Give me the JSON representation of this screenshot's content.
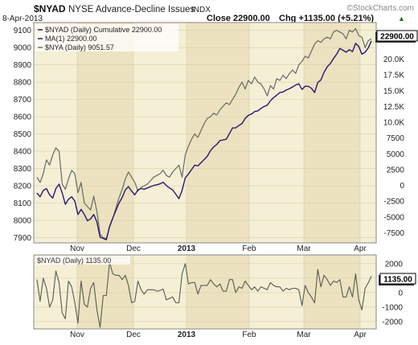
{
  "header": {
    "symbol": "$NYAD",
    "name": "NYSE Advance-Decline Issues",
    "exchange": "INDX",
    "date": "8-Apr-2013",
    "close_label": "Close 22900.00",
    "chg_label": "Chg +1135.00 (+5.21%)",
    "chg_arrow": "▲",
    "brand": "©StockCharts.com"
  },
  "legend": [
    {
      "text": "$NYAD (Daily) Cumulative 22900.00",
      "color": "#222222"
    },
    {
      "text": "MA(1) 22900.00",
      "color": "#2a1a78"
    },
    {
      "text": "$NYA (Daily) 9051.57",
      "color": "#6a6e66"
    }
  ],
  "lower_legend": {
    "text": "$NYAD (Daily) 1135.00",
    "color": "#555a52"
  },
  "badges": {
    "main": "22900.00",
    "lower": "1135.00"
  },
  "colors": {
    "panel_bg": "#f5efd6",
    "band_bg": "#ece2c0",
    "nya_line": "#646b62",
    "cumulative_line": "#28186f",
    "daily_line": "#555c52"
  },
  "chart_data": [
    {
      "type": "line",
      "title": "$NYAD NYSE Advance-Decline Issues",
      "x_labels": [
        "Nov",
        "Dec",
        "2013",
        "Feb",
        "Mar",
        "Apr"
      ],
      "left_axis": {
        "ticks": [
          7900,
          8000,
          8100,
          8200,
          8300,
          8400,
          8500,
          8600,
          8700,
          8800,
          8900,
          9000,
          9100
        ],
        "range": [
          7870,
          9145
        ]
      },
      "right_axis": {
        "ticks": [
          -7500,
          -5000,
          -2500,
          0,
          2500,
          5000,
          7500,
          10000,
          12500,
          15000,
          17500,
          20000
        ],
        "tick_labels": [
          "-7500",
          "-5000",
          "-2500",
          "0",
          "2500",
          "5000",
          "7500",
          "10.0K",
          "12.5K",
          "15.0K",
          "17.5K",
          "20.0K"
        ],
        "range": [
          -9100,
          25800
        ]
      },
      "series": [
        {
          "name": "$NYA (Daily) 9051.57",
          "axis": "left",
          "values": [
            8250,
            8220,
            8270,
            8350,
            8320,
            8380,
            8420,
            8400,
            8210,
            8180,
            8240,
            8290,
            8270,
            8160,
            8220,
            8100,
            8080,
            8060,
            8140,
            8050,
            7920,
            7900,
            7895,
            7960,
            8010,
            8070,
            8130,
            8180,
            8240,
            8280,
            8250,
            8220,
            8170,
            8190,
            8200,
            8210,
            8230,
            8250,
            8260,
            8270,
            8290,
            8260,
            8250,
            8280,
            8300,
            8320,
            8250,
            8380,
            8430,
            8470,
            8500,
            8480,
            8520,
            8560,
            8590,
            8600,
            8620,
            8610,
            8640,
            8660,
            8680,
            8670,
            8700,
            8730,
            8770,
            8800,
            8760,
            8810,
            8790,
            8830,
            8800,
            8790,
            8760,
            8720,
            8780,
            8760,
            8820,
            8810,
            8840,
            8820,
            8850,
            8870,
            8850,
            8900,
            8920,
            8950,
            8940,
            8980,
            9020,
            9040,
            9030,
            9050,
            9060,
            9050,
            9090,
            9100,
            9090,
            9080,
            9050,
            9100,
            9090,
            9110,
            9070,
            9060,
            9000,
            9040,
            9051.57
          ]
        },
        {
          "name": "$NYAD (Daily) Cumulative 22900.00",
          "axis": "right",
          "values": [
            -1200,
            -1800,
            -800,
            -500,
            -1500,
            -2000,
            -500,
            200,
            -1200,
            -3000,
            -2200,
            -1800,
            -2500,
            -4600,
            -3800,
            -4600,
            -5600,
            -5300,
            -4600,
            -5800,
            -8200,
            -8400,
            -8600,
            -6500,
            -5200,
            -4000,
            -2800,
            -1900,
            -700,
            -200,
            -900,
            -1500,
            -700,
            -500,
            -600,
            -400,
            -200,
            0,
            100,
            250,
            500,
            0,
            -400,
            -700,
            -1400,
            -2100,
            -800,
            1200,
            1800,
            2500,
            3200,
            3100,
            3600,
            4100,
            4600,
            5500,
            6100,
            6500,
            7100,
            7200,
            7300,
            8200,
            9100,
            9100,
            9500,
            9800,
            10600,
            11100,
            11300,
            11700,
            11800,
            12200,
            12500,
            12700,
            13400,
            13900,
            14300,
            14700,
            14800,
            15100,
            15300,
            15600,
            15900,
            16100,
            15200,
            15700,
            15700,
            15400,
            14700,
            16300,
            16700,
            17900,
            18800,
            19300,
            20100,
            20800,
            21700,
            21400,
            21100,
            21500,
            21200,
            22500,
            22000,
            20800,
            21100,
            21765,
            22900
          ]
        },
        {
          "name": "MA(1) 22900.00",
          "axis": "right",
          "same_as": "$NYAD (Daily) Cumulative 22900.00"
        }
      ]
    },
    {
      "type": "line",
      "title": "$NYAD (Daily) 1135.00",
      "x_labels": [
        "Nov",
        "Dec",
        "2013",
        "Feb",
        "Mar",
        "Apr"
      ],
      "axis": {
        "ticks": [
          -2000,
          -1000,
          0,
          1000,
          2000
        ],
        "range": [
          -2500,
          2600
        ]
      },
      "series": [
        {
          "name": "$NYAD (Daily) 1135.00",
          "values": [
            900,
            -600,
            1000,
            300,
            -1000,
            -500,
            1500,
            700,
            -1400,
            -1800,
            800,
            400,
            -700,
            -2100,
            800,
            -800,
            -1000,
            300,
            700,
            -1200,
            -2400,
            -200,
            -200,
            2100,
            1300,
            1200,
            1200,
            900,
            1200,
            500,
            -700,
            -600,
            800,
            200,
            -100,
            200,
            200,
            200,
            100,
            150,
            250,
            -500,
            -400,
            -300,
            -700,
            -700,
            1300,
            2000,
            600,
            700,
            700,
            -100,
            500,
            500,
            500,
            900,
            600,
            400,
            600,
            100,
            100,
            900,
            900,
            0,
            400,
            300,
            800,
            500,
            200,
            400,
            100,
            400,
            300,
            200,
            700,
            500,
            400,
            400,
            100,
            300,
            200,
            300,
            300,
            200,
            -900,
            500,
            0,
            -300,
            -700,
            1600,
            400,
            1200,
            900,
            500,
            800,
            700,
            900,
            -300,
            -300,
            400,
            -300,
            1300,
            -500,
            -1200,
            300,
            665,
            1135
          ]
        }
      ]
    }
  ]
}
